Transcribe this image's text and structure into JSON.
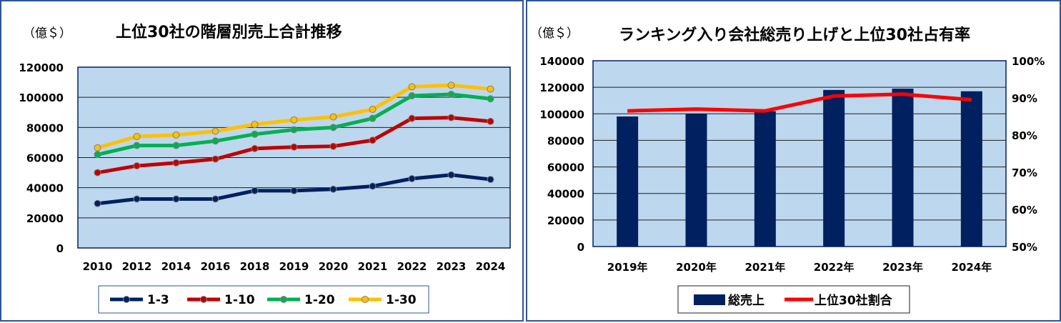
{
  "chart_data": [
    {
      "type": "line",
      "title": "上位30社の階層別売上合計推移",
      "unit_label": "（億＄）",
      "categories": [
        "2010",
        "2012",
        "2014",
        "2016",
        "2018",
        "2019",
        "2020",
        "2021",
        "2022",
        "2023",
        "2024"
      ],
      "ylim": [
        0,
        120000
      ],
      "yticks": [
        "0",
        "20000",
        "40000",
        "60000",
        "80000",
        "100000",
        "120000"
      ],
      "grid": true,
      "legend": "bottom",
      "series": [
        {
          "name": "1-3",
          "color": "#002060",
          "values": [
            29500,
            32500,
            32500,
            32500,
            38000,
            38000,
            39000,
            41000,
            46000,
            48500,
            45500
          ]
        },
        {
          "name": "1-10",
          "color": "#c00000",
          "values": [
            50000,
            54500,
            56500,
            59000,
            66000,
            67000,
            67500,
            71500,
            86000,
            86500,
            84000
          ]
        },
        {
          "name": "1-20",
          "color": "#00b050",
          "values": [
            62000,
            68000,
            68000,
            71000,
            75500,
            78500,
            80000,
            86000,
            101000,
            102000,
            99000
          ]
        },
        {
          "name": "1-30",
          "color": "#ffc000",
          "values": [
            66500,
            74000,
            75000,
            77500,
            82000,
            85000,
            87000,
            92000,
            107000,
            108000,
            105500
          ]
        }
      ]
    },
    {
      "type": "bar",
      "title": "ランキング入り会社総売り上げと上位30社占有率",
      "unit_label": "（億＄）",
      "categories": [
        "2019年",
        "2020年",
        "2021年",
        "2022年",
        "2023年",
        "2024年"
      ],
      "ylim": [
        0,
        140000
      ],
      "yticks": [
        "0",
        "20000",
        "40000",
        "60000",
        "80000",
        "100000",
        "120000",
        "140000"
      ],
      "y2lim": [
        50,
        100
      ],
      "y2ticks": [
        "50%",
        "60%",
        "70%",
        "80%",
        "90%",
        "100%"
      ],
      "grid": true,
      "legend": "bottom",
      "series": [
        {
          "name": "総売上",
          "type": "bar",
          "color": "#002060",
          "values": [
            98000,
            100000,
            102000,
            118000,
            119000,
            117000
          ]
        },
        {
          "name": "上位30社割合",
          "type": "line",
          "color": "#ff0000",
          "axis": "secondary",
          "values": [
            86.5,
            87,
            86.5,
            90.5,
            91,
            89.5
          ]
        }
      ]
    }
  ]
}
